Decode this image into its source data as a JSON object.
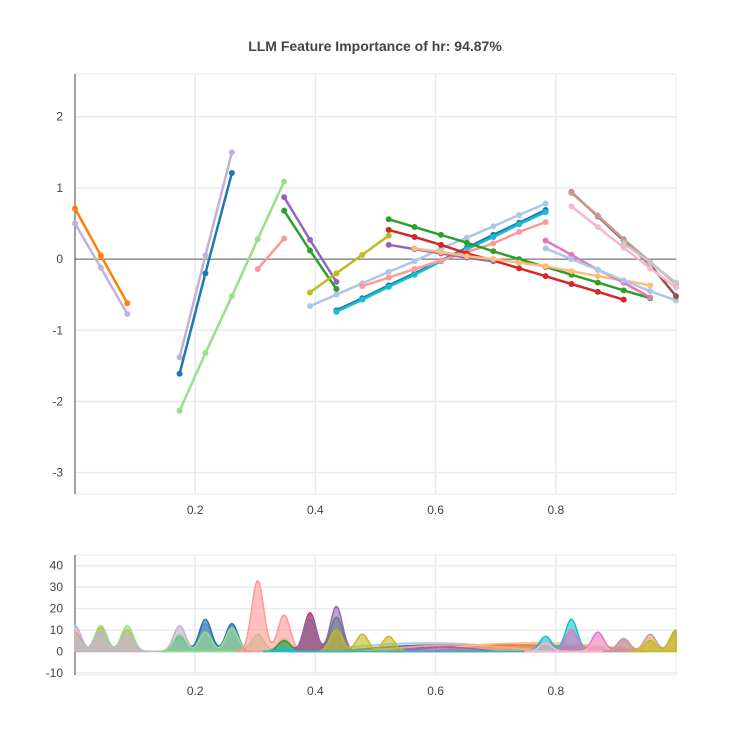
{
  "chart_data": [
    {
      "type": "line",
      "title": "LLM Feature Importance of hr: 94.87%",
      "xlabel": "",
      "ylabel": "",
      "xlim": [
        0.0,
        1.0
      ],
      "ylim": [
        -3.3,
        2.6
      ],
      "x_ticks": [
        0.2,
        0.4,
        0.6,
        0.8
      ],
      "x_tick_labels": [
        "0.2",
        "0.4",
        "0.6",
        "0.8"
      ],
      "y_ticks": [
        -3,
        -2,
        -1,
        0,
        1,
        2
      ],
      "y_tick_labels": [
        "-3",
        "-2",
        "-1",
        "0",
        "1",
        "2"
      ],
      "zero_line": true,
      "grid": true,
      "legend": "none",
      "series": [
        {
          "color": "#ff7f0e",
          "x": [
            0.0,
            0.043,
            0.087
          ],
          "y": [
            0.71,
            0.05,
            -0.62
          ]
        },
        {
          "color": "#c5b0d5",
          "x": [
            0.0,
            0.043,
            0.087
          ],
          "y": [
            0.5,
            -0.12,
            -0.77
          ]
        },
        {
          "color": "#1f77b4",
          "x": [
            0.174,
            0.217,
            0.261
          ],
          "y": [
            -1.61,
            -0.2,
            1.21
          ]
        },
        {
          "color": "#c5b0d5",
          "x": [
            0.174,
            0.217,
            0.261
          ],
          "y": [
            -1.38,
            0.05,
            1.5
          ]
        },
        {
          "color": "#98df8a",
          "x": [
            0.174,
            0.217,
            0.261,
            0.304,
            0.348
          ],
          "y": [
            -2.13,
            -1.32,
            -0.52,
            0.28,
            1.09
          ]
        },
        {
          "color": "#ff9896",
          "x": [
            0.304,
            0.348
          ],
          "y": [
            -0.14,
            0.29
          ]
        },
        {
          "color": "#9467bd",
          "x": [
            0.348,
            0.391,
            0.435
          ],
          "y": [
            0.87,
            0.27,
            -0.32
          ]
        },
        {
          "color": "#2ca02c",
          "x": [
            0.348,
            0.391,
            0.435
          ],
          "y": [
            0.68,
            0.12,
            -0.42
          ]
        },
        {
          "color": "#bcbd22",
          "x": [
            0.391,
            0.435,
            0.478,
            0.522
          ],
          "y": [
            -0.47,
            -0.2,
            0.06,
            0.33
          ]
        },
        {
          "color": "#aec7e8",
          "x": [
            0.391,
            0.435,
            0.478,
            0.522,
            0.565,
            0.609,
            0.652,
            0.696,
            0.739,
            0.783
          ],
          "y": [
            -0.66,
            -0.5,
            -0.34,
            -0.18,
            -0.03,
            0.15,
            0.3,
            0.46,
            0.62,
            0.78
          ]
        },
        {
          "color": "#1f77b4",
          "x": [
            0.435,
            0.478,
            0.522,
            0.565,
            0.609,
            0.652,
            0.696,
            0.739,
            0.783
          ],
          "y": [
            -0.72,
            -0.55,
            -0.37,
            -0.2,
            -0.02,
            0.16,
            0.34,
            0.51,
            0.69
          ]
        },
        {
          "color": "#17becf",
          "x": [
            0.435,
            0.478,
            0.522,
            0.565,
            0.609,
            0.652,
            0.696,
            0.739,
            0.783
          ],
          "y": [
            -0.74,
            -0.57,
            -0.39,
            -0.22,
            -0.03,
            0.14,
            0.31,
            0.49,
            0.66
          ]
        },
        {
          "color": "#ff9896",
          "x": [
            0.478,
            0.522,
            0.565,
            0.609,
            0.652,
            0.696,
            0.739,
            0.783
          ],
          "y": [
            -0.38,
            -0.26,
            -0.14,
            -0.02,
            0.1,
            0.22,
            0.38,
            0.52
          ]
        },
        {
          "color": "#2ca02c",
          "x": [
            0.522,
            0.565,
            0.609,
            0.652,
            0.696,
            0.739,
            0.783,
            0.826,
            0.87,
            0.913,
            0.957
          ],
          "y": [
            0.56,
            0.45,
            0.34,
            0.23,
            0.11,
            0.0,
            -0.11,
            -0.22,
            -0.33,
            -0.44,
            -0.55
          ]
        },
        {
          "color": "#d62728",
          "x": [
            0.522,
            0.565,
            0.609,
            0.652,
            0.696,
            0.739,
            0.783,
            0.826,
            0.87,
            0.913
          ],
          "y": [
            0.41,
            0.31,
            0.2,
            0.08,
            -0.02,
            -0.13,
            -0.24,
            -0.35,
            -0.46,
            -0.57
          ]
        },
        {
          "color": "#9467bd",
          "x": [
            0.522,
            0.565,
            0.609,
            0.652,
            0.696
          ],
          "y": [
            0.2,
            0.14,
            0.08,
            0.02,
            -0.03
          ]
        },
        {
          "color": "#ffbb78",
          "x": [
            0.565,
            0.609,
            0.652,
            0.696,
            0.739,
            0.783,
            0.826,
            0.87,
            0.913,
            0.957
          ],
          "y": [
            0.15,
            0.1,
            0.04,
            0.0,
            -0.05,
            -0.1,
            -0.17,
            -0.24,
            -0.3,
            -0.37
          ]
        },
        {
          "color": "#e377c2",
          "x": [
            0.783,
            0.826,
            0.87,
            0.913,
            0.957
          ],
          "y": [
            0.26,
            0.06,
            -0.15,
            -0.33,
            -0.54
          ]
        },
        {
          "color": "#aec7e8",
          "x": [
            0.783,
            0.826,
            0.87,
            0.913,
            0.957,
            1.0
          ],
          "y": [
            0.15,
            0.0,
            -0.15,
            -0.3,
            -0.45,
            -0.58
          ]
        },
        {
          "color": "#8c564b",
          "x": [
            0.826,
            0.87,
            0.913,
            0.957,
            1.0
          ],
          "y": [
            0.94,
            0.6,
            0.26,
            -0.08,
            -0.52
          ]
        },
        {
          "color": "#c49c94",
          "x": [
            0.826,
            0.87,
            0.913,
            0.957,
            1.0
          ],
          "y": [
            0.93,
            0.61,
            0.28,
            -0.04,
            -0.35
          ]
        },
        {
          "color": "#f7b6d2",
          "x": [
            0.826,
            0.87,
            0.913,
            0.957,
            1.0
          ],
          "y": [
            0.74,
            0.45,
            0.16,
            -0.13,
            -0.4
          ]
        },
        {
          "color": "#c7c7c7",
          "x": [
            0.913,
            0.957,
            1.0
          ],
          "y": [
            0.22,
            -0.05,
            -0.33
          ]
        }
      ]
    },
    {
      "type": "area",
      "title": "",
      "xlabel": "",
      "ylabel": "",
      "xlim": [
        0.0,
        1.0
      ],
      "ylim": [
        -11,
        45
      ],
      "x_ticks": [
        0.2,
        0.4,
        0.6,
        0.8
      ],
      "x_tick_labels": [
        "0.2",
        "0.4",
        "0.6",
        "0.8"
      ],
      "y_ticks": [
        -10,
        0,
        10,
        20,
        30,
        40
      ],
      "y_tick_labels": [
        "-10",
        "0",
        "10",
        "20",
        "30",
        "40"
      ],
      "grid": true,
      "legend": "none",
      "peak_width": 0.01,
      "series": [
        {
          "color": "#ff7f0e",
          "peaks": [
            [
              0.0,
              9
            ],
            [
              0.043,
              11
            ],
            [
              0.087,
              10
            ]
          ]
        },
        {
          "color": "#98df8a",
          "peaks": [
            [
              0.0,
              7
            ],
            [
              0.043,
              12
            ],
            [
              0.087,
              12
            ]
          ]
        },
        {
          "color": "#c5b0d5",
          "peaks": [
            [
              0.0,
              12
            ],
            [
              0.043,
              9
            ],
            [
              0.087,
              8
            ],
            [
              0.174,
              12
            ],
            [
              0.217,
              13
            ],
            [
              0.261,
              12
            ]
          ]
        },
        {
          "color": "#1f77b4",
          "peaks": [
            [
              0.174,
              7
            ],
            [
              0.217,
              15
            ],
            [
              0.261,
              13
            ]
          ]
        },
        {
          "color": "#98df8a",
          "peaks": [
            [
              0.174,
              8
            ],
            [
              0.217,
              9
            ],
            [
              0.261,
              11
            ],
            [
              0.304,
              8
            ],
            [
              0.348,
              6
            ]
          ]
        },
        {
          "color": "#ff9896",
          "peaks": [
            [
              0.304,
              33
            ],
            [
              0.348,
              17
            ]
          ]
        },
        {
          "color": "#2ca02c",
          "peaks": [
            [
              0.348,
              5
            ],
            [
              0.391,
              15
            ],
            [
              0.435,
              16
            ]
          ]
        },
        {
          "color": "#d62728",
          "peaks": [
            [
              0.391,
              18
            ]
          ]
        },
        {
          "color": "#9467bd",
          "peaks": [
            [
              0.391,
              17
            ],
            [
              0.435,
              21
            ]
          ]
        },
        {
          "color": "#bcbd22",
          "peaks": [
            [
              0.435,
              10
            ],
            [
              0.478,
              8
            ],
            [
              0.522,
              7
            ]
          ]
        },
        {
          "color": "#17becf",
          "peaks": [
            [
              0.348,
              2
            ],
            [
              0.783,
              7
            ],
            [
              0.826,
              15
            ]
          ]
        },
        {
          "color": "#e377c2",
          "peaks": [
            [
              0.826,
              10
            ],
            [
              0.87,
              9
            ],
            [
              0.913,
              6
            ]
          ]
        },
        {
          "color": "#f7b6d2",
          "peaks": [
            [
              0.783,
              4
            ],
            [
              0.87,
              6
            ]
          ]
        },
        {
          "color": "#c49c94",
          "peaks": [
            [
              0.913,
              6
            ],
            [
              0.957,
              8
            ],
            [
              1.0,
              9
            ]
          ]
        },
        {
          "color": "#ffbb78",
          "peaks": [
            [
              0.957,
              6
            ],
            [
              1.0,
              7
            ]
          ]
        },
        {
          "color": "#bcbd22",
          "peaks": [
            [
              0.957,
              5
            ],
            [
              1.0,
              10
            ]
          ]
        }
      ],
      "humps": [
        {
          "color": "#aec7e8",
          "range": [
            0.39,
            0.785
          ],
          "height": 4
        },
        {
          "color": "#1f77b4",
          "range": [
            0.435,
            0.785
          ],
          "height": 3
        },
        {
          "color": "#2ca02c",
          "range": [
            0.522,
            0.96
          ],
          "height": 3
        },
        {
          "color": "#d62728",
          "range": [
            0.522,
            0.92
          ],
          "height": 3
        },
        {
          "color": "#ff9896",
          "range": [
            0.478,
            0.785
          ],
          "height": 3
        },
        {
          "color": "#ffbb78",
          "range": [
            0.565,
            0.96
          ],
          "height": 4
        },
        {
          "color": "#9467bd",
          "range": [
            0.522,
            0.7
          ],
          "height": 2
        }
      ]
    }
  ]
}
